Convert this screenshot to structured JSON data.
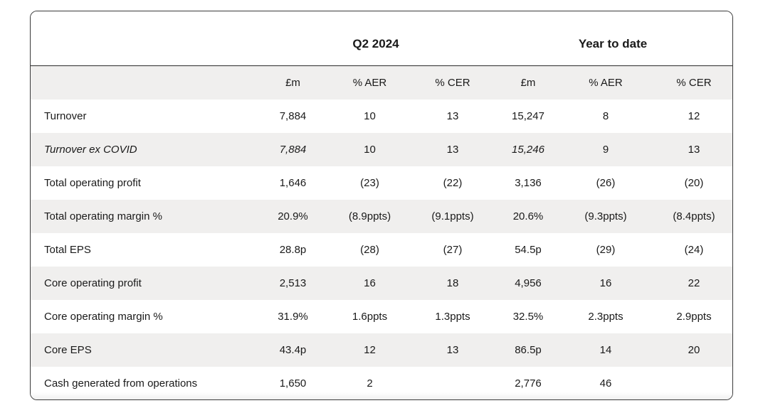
{
  "table": {
    "groups": {
      "q2": "Q2 2024",
      "ytd": "Year to date"
    },
    "columns": [
      "£m",
      "% AER",
      "% CER",
      "£m",
      "% AER",
      "% CER"
    ],
    "rows": [
      {
        "label": "Turnover",
        "italic": false,
        "values": [
          "7,884",
          "10",
          "13",
          "15,247",
          "8",
          "12"
        ]
      },
      {
        "label": "Turnover ex COVID",
        "italic": true,
        "values": [
          "7,884",
          "10",
          "13",
          "15,246",
          "9",
          "13"
        ]
      },
      {
        "label": "Total operating profit",
        "italic": false,
        "values": [
          "1,646",
          "(23)",
          "(22)",
          "3,136",
          "(26)",
          "(20)"
        ]
      },
      {
        "label": "Total operating margin %",
        "italic": false,
        "values": [
          "20.9%",
          "(8.9ppts)",
          "(9.1ppts)",
          "20.6%",
          "(9.3ppts)",
          "(8.4ppts)"
        ]
      },
      {
        "label": "Total EPS",
        "italic": false,
        "values": [
          "28.8p",
          "(28)",
          "(27)",
          "54.5p",
          "(29)",
          "(24)"
        ]
      },
      {
        "label": "Core operating profit",
        "italic": false,
        "values": [
          "2,513",
          "16",
          "18",
          "4,956",
          "16",
          "22"
        ]
      },
      {
        "label": "Core operating margin %",
        "italic": false,
        "values": [
          "31.9%",
          "1.6ppts",
          "1.3ppts",
          "32.5%",
          "2.3ppts",
          "2.9ppts"
        ]
      },
      {
        "label": "Core EPS",
        "italic": false,
        "values": [
          "43.4p",
          "12",
          "13",
          "86.5p",
          "14",
          "20"
        ]
      },
      {
        "label": "Cash generated from operations",
        "italic": false,
        "values": [
          "1,650",
          "2",
          "",
          "2,776",
          "46",
          ""
        ]
      }
    ]
  }
}
